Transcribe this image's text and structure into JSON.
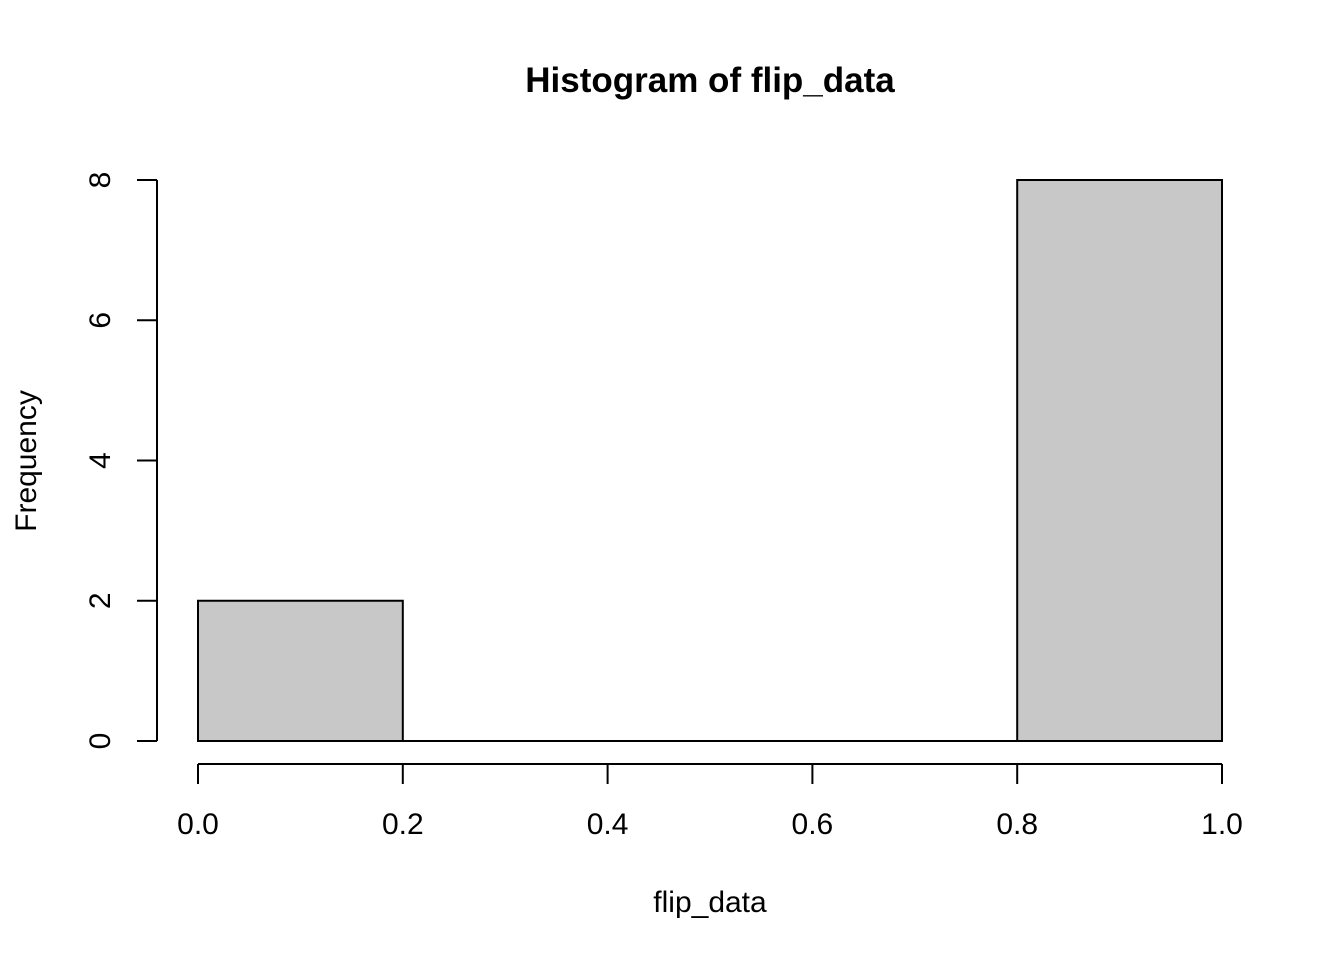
{
  "chart_data": {
    "type": "bar",
    "title": "Histogram of flip_data",
    "xlabel": "flip_data",
    "ylabel": "Frequency",
    "bins": [
      {
        "start": 0.0,
        "end": 0.2,
        "count": 2
      },
      {
        "start": 0.2,
        "end": 0.4,
        "count": 0
      },
      {
        "start": 0.4,
        "end": 0.6,
        "count": 0
      },
      {
        "start": 0.6,
        "end": 0.8,
        "count": 0
      },
      {
        "start": 0.8,
        "end": 1.0,
        "count": 8
      }
    ],
    "xlim": [
      0.0,
      1.0
    ],
    "ylim": [
      0,
      8
    ],
    "x_ticks": [
      0.0,
      0.2,
      0.4,
      0.6,
      0.8,
      1.0
    ],
    "x_tick_labels": [
      "0.0",
      "0.2",
      "0.4",
      "0.6",
      "0.8",
      "1.0"
    ],
    "y_ticks": [
      0,
      2,
      4,
      6,
      8
    ],
    "y_tick_labels": [
      "0",
      "2",
      "4",
      "6",
      "8"
    ],
    "grid": false,
    "bar_fill": "#c8c8c8",
    "bar_stroke": "#000000"
  }
}
